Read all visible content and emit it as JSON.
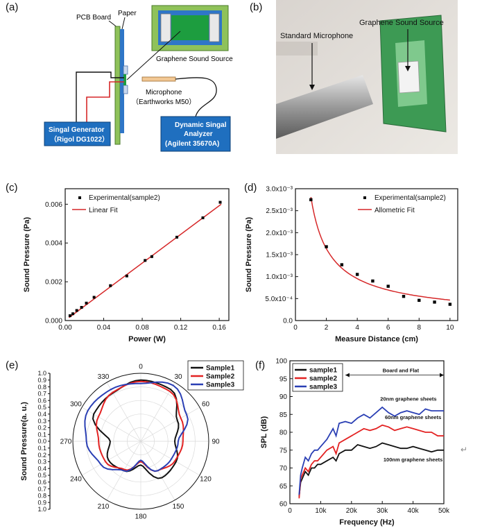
{
  "panels": {
    "a": {
      "label": "(a)",
      "pcb_board": "PCB Board",
      "paper": "Paper",
      "graphene_sound_source": "Graphene Sound Source",
      "microphone": "Microphone",
      "microphone_model": "（Earthworks M50）",
      "signal_generator": "Singal Generator",
      "signal_generator_model": "（Rigol DG1022）",
      "analyzer_line1": "Dynamic Singal",
      "analyzer_line2": "Analyzer",
      "analyzer_line3": "(Agilent 35670A)",
      "colors": {
        "pcb": "#8fc25a",
        "paper": "#2f76c7",
        "box": "#1f6fbf",
        "graphene": "#1d9d3f"
      }
    },
    "b": {
      "label": "(b)",
      "standard_microphone": "Standard Microphone",
      "graphene_sound_source": "Graphene Sound Source"
    },
    "c": {
      "label": "(c)"
    },
    "d": {
      "label": "(d)"
    },
    "e": {
      "label": "(e)"
    },
    "f": {
      "label": "(f)"
    }
  },
  "return_mark": "↵",
  "chart_data": [
    {
      "id": "c",
      "type": "scatter",
      "xlabel": "Power (W)",
      "ylabel": "Sound Pressure (Pa)",
      "xlim": [
        0,
        0.17
      ],
      "ylim": [
        0,
        0.0068
      ],
      "xticks": [
        0,
        0.04,
        0.08,
        0.12,
        0.16
      ],
      "xticklabels": [
        "0.00",
        "0.04",
        "0.08",
        "0.12",
        "0.16"
      ],
      "yticks": [
        0,
        0.002,
        0.004,
        0.006
      ],
      "yticklabels": [
        "0.000",
        "0.002",
        "0.004",
        "0.006"
      ],
      "legend_position": "top-left",
      "series": [
        {
          "name": "Experimental(sample2)",
          "kind": "points",
          "color": "#000000",
          "x": [
            0.005,
            0.008,
            0.012,
            0.017,
            0.022,
            0.03,
            0.047,
            0.064,
            0.083,
            0.09,
            0.116,
            0.143,
            0.161
          ],
          "y": [
            0.00025,
            0.00035,
            0.00052,
            0.00068,
            0.0009,
            0.0012,
            0.0018,
            0.0023,
            0.0031,
            0.0033,
            0.0043,
            0.0053,
            0.0061
          ]
        },
        {
          "name": "Linear Fit",
          "kind": "line",
          "color": "#d62728",
          "x": [
            0.004,
            0.162
          ],
          "y": [
            0.00015,
            0.006
          ]
        }
      ]
    },
    {
      "id": "d",
      "type": "scatter",
      "xlabel": "Measure Distance (cm)",
      "ylabel": "Sound Pressure (Pa)",
      "xlim": [
        0,
        10.5
      ],
      "ylim": [
        0,
        0.003
      ],
      "xticks": [
        0,
        2,
        4,
        6,
        8,
        10
      ],
      "xticklabels": [
        "0",
        "2",
        "4",
        "6",
        "8",
        "10"
      ],
      "yticks": [
        0,
        0.0005,
        0.001,
        0.0015,
        0.002,
        0.0025,
        0.003
      ],
      "yticklabels": [
        "0.0",
        "5.0x10⁻⁴",
        "1.0x10⁻³",
        "1.5x10⁻³",
        "2.0x10⁻³",
        "2.5x10⁻³",
        "3.0x10⁻³"
      ],
      "legend_position": "top-right",
      "series": [
        {
          "name": "Experimental(sample2)",
          "kind": "points",
          "color": "#000000",
          "x": [
            1,
            2,
            3,
            4,
            5,
            6,
            7,
            8,
            9,
            10
          ],
          "y": [
            0.00275,
            0.00168,
            0.00127,
            0.00105,
            0.0009,
            0.00078,
            0.00055,
            0.00046,
            0.00042,
            0.00037
          ]
        },
        {
          "name": "Allometric Fit",
          "kind": "line",
          "color": "#d62728",
          "fit": {
            "form": "a*x^b",
            "a": 0.00281,
            "b": -0.78
          },
          "x_range": [
            1,
            10
          ]
        }
      ]
    },
    {
      "id": "e",
      "type": "polar",
      "ylabel": "Sound Pressure(a. u.)",
      "r_max": 1.0,
      "angle_labels": [
        "0",
        "30",
        "60",
        "90",
        "120",
        "150",
        "180",
        "210",
        "240",
        "270",
        "300",
        "330"
      ],
      "radial_ticklabels": [
        "1.0",
        "0.9",
        "0.8",
        "0.7",
        "0.6",
        "0.5",
        "0.4",
        "0.3",
        "0.2",
        "0.1",
        "0.0",
        "0.1",
        "0.2",
        "0.3",
        "0.4",
        "0.5",
        "0.6",
        "0.7",
        "0.8",
        "0.9",
        "1.0"
      ],
      "legend_position": "top-right",
      "angles_deg": [
        0,
        30,
        60,
        90,
        120,
        150,
        180,
        210,
        240,
        270,
        300,
        330
      ],
      "series": [
        {
          "name": "Sample1",
          "color": "#111111",
          "r": [
            0.9,
            0.88,
            0.62,
            0.5,
            0.6,
            0.62,
            0.35,
            0.5,
            0.55,
            0.45,
            0.8,
            0.82
          ]
        },
        {
          "name": "Sample2",
          "color": "#e32222",
          "r": [
            0.88,
            0.85,
            0.68,
            0.62,
            0.58,
            0.5,
            0.3,
            0.48,
            0.6,
            0.62,
            0.72,
            0.83
          ]
        },
        {
          "name": "Sample3",
          "color": "#2a3fb4",
          "r": [
            0.85,
            0.95,
            0.78,
            0.55,
            0.52,
            0.5,
            0.28,
            0.5,
            0.68,
            0.8,
            0.9,
            0.88
          ]
        }
      ]
    },
    {
      "id": "f",
      "type": "line",
      "xlabel": "Frequency (Hz)",
      "ylabel": "SPL (dB)",
      "xlim": [
        0,
        50000
      ],
      "ylim": [
        60,
        100
      ],
      "xticks": [
        0,
        10000,
        20000,
        30000,
        40000,
        50000
      ],
      "xticklabels": [
        "0",
        "10k",
        "20k",
        "30k",
        "40k",
        "50k"
      ],
      "yticks": [
        60,
        65,
        70,
        75,
        80,
        85,
        90,
        95,
        100
      ],
      "yticklabels": [
        "60",
        "65",
        "70",
        "75",
        "80",
        "85",
        "90",
        "95",
        "100"
      ],
      "legend_position": "top-left",
      "annotations": {
        "band": "Board and Flat",
        "band_range": [
          18000,
          50000
        ],
        "band_y": 96,
        "labels": [
          {
            "text": "20nm graphene sheets",
            "x": 38500,
            "y": 88.8
          },
          {
            "text": "60nm graphene sheets",
            "x": 40000,
            "y": 83.7
          },
          {
            "text": "100nm graphene sheets",
            "x": 40000,
            "y": 71.8
          }
        ]
      },
      "series": [
        {
          "name": "sample1",
          "color": "#111111",
          "x": [
            3000,
            3500,
            4000,
            5000,
            6000,
            7000,
            8000,
            9000,
            10000,
            12000,
            14000,
            15000,
            16000,
            18000,
            20000,
            22000,
            24000,
            26000,
            28000,
            30000,
            32000,
            34000,
            36000,
            38000,
            40000,
            42000,
            44000,
            46000,
            48000,
            50000
          ],
          "y": [
            62,
            66,
            67,
            69,
            68,
            70,
            70,
            71,
            71,
            72,
            73,
            72,
            74,
            75,
            75,
            76.5,
            76,
            75.5,
            76,
            77,
            76.5,
            76,
            75.5,
            75.5,
            76,
            75.5,
            75,
            74.5,
            75,
            75
          ]
        },
        {
          "name": "sample2",
          "color": "#e32222",
          "x": [
            3000,
            3500,
            4000,
            5000,
            6000,
            7000,
            8000,
            9000,
            10000,
            12000,
            14000,
            15000,
            16000,
            18000,
            20000,
            22000,
            24000,
            26000,
            28000,
            30000,
            32000,
            34000,
            36000,
            38000,
            40000,
            42000,
            44000,
            46000,
            48000,
            50000
          ],
          "y": [
            61.5,
            67,
            68,
            70,
            69,
            71,
            72,
            72,
            73,
            75,
            76,
            74,
            77,
            78,
            79,
            80,
            81,
            80.5,
            81,
            82,
            81.5,
            80.5,
            81,
            81.5,
            81,
            80.5,
            80,
            80,
            79,
            79
          ]
        },
        {
          "name": "sample3",
          "color": "#2a3fb4",
          "x": [
            3000,
            3500,
            4000,
            5000,
            6000,
            7000,
            8000,
            9000,
            10000,
            12000,
            14000,
            15000,
            16000,
            18000,
            20000,
            22000,
            24000,
            26000,
            28000,
            30000,
            32000,
            34000,
            36000,
            38000,
            40000,
            42000,
            44000,
            46000,
            48000,
            50000
          ],
          "y": [
            62.5,
            68,
            70,
            73,
            72,
            74,
            75,
            75,
            76,
            78,
            81,
            79,
            82.5,
            83,
            82.5,
            84,
            85,
            84,
            85.5,
            87,
            85.5,
            84.5,
            85.5,
            86,
            85.5,
            85,
            86.5,
            86,
            86,
            86
          ]
        }
      ]
    }
  ]
}
